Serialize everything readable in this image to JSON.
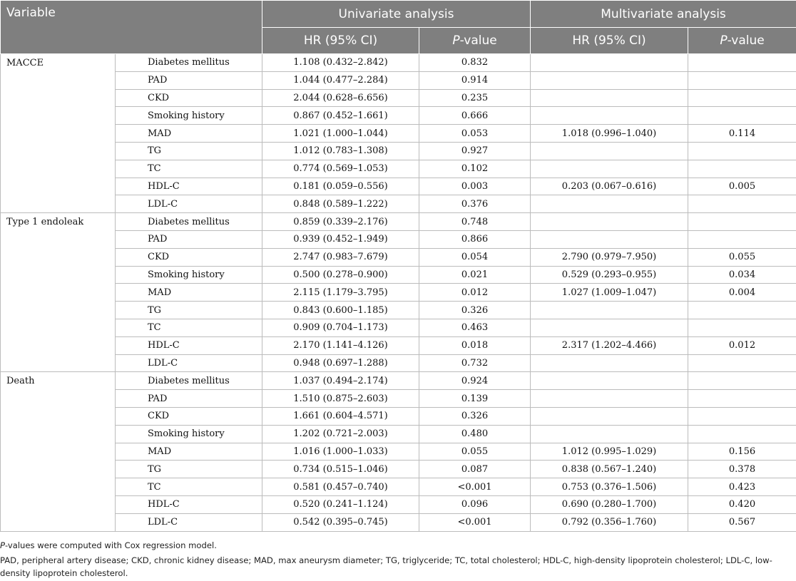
{
  "header": {
    "variable": "Variable",
    "univariate": "Univariate analysis",
    "multivariate": "Multivariate analysis",
    "hr_ci": "HR (95% CI)",
    "p_prefix": "P",
    "p_suffix": "-value"
  },
  "groups": [
    {
      "name": "MACCE",
      "rows": [
        {
          "variable": "Diabetes mellitus",
          "uni_hr": "1.108 (0.432–2.842)",
          "uni_p": "0.832",
          "multi_hr": "",
          "multi_p": ""
        },
        {
          "variable": "PAD",
          "uni_hr": "1.044 (0.477–2.284)",
          "uni_p": "0.914",
          "multi_hr": "",
          "multi_p": ""
        },
        {
          "variable": "CKD",
          "uni_hr": "2.044 (0.628–6.656)",
          "uni_p": "0.235",
          "multi_hr": "",
          "multi_p": ""
        },
        {
          "variable": "Smoking history",
          "uni_hr": "0.867 (0.452–1.661)",
          "uni_p": "0.666",
          "multi_hr": "",
          "multi_p": ""
        },
        {
          "variable": "MAD",
          "uni_hr": "1.021 (1.000–1.044)",
          "uni_p": "0.053",
          "multi_hr": "1.018 (0.996–1.040)",
          "multi_p": "0.114"
        },
        {
          "variable": "TG",
          "uni_hr": "1.012 (0.783–1.308)",
          "uni_p": "0.927",
          "multi_hr": "",
          "multi_p": ""
        },
        {
          "variable": "TC",
          "uni_hr": "0.774 (0.569–1.053)",
          "uni_p": "0.102",
          "multi_hr": "",
          "multi_p": ""
        },
        {
          "variable": "HDL-C",
          "uni_hr": "0.181 (0.059–0.556)",
          "uni_p": "0.003",
          "multi_hr": "0.203 (0.067–0.616)",
          "multi_p": "0.005"
        },
        {
          "variable": "LDL-C",
          "uni_hr": "0.848 (0.589–1.222)",
          "uni_p": "0.376",
          "multi_hr": "",
          "multi_p": ""
        }
      ]
    },
    {
      "name": "Type 1 endoleak",
      "rows": [
        {
          "variable": "Diabetes mellitus",
          "uni_hr": "0.859 (0.339–2.176)",
          "uni_p": "0.748",
          "multi_hr": "",
          "multi_p": ""
        },
        {
          "variable": "PAD",
          "uni_hr": "0.939 (0.452–1.949)",
          "uni_p": "0.866",
          "multi_hr": "",
          "multi_p": ""
        },
        {
          "variable": "CKD",
          "uni_hr": "2.747 (0.983–7.679)",
          "uni_p": "0.054",
          "multi_hr": "2.790 (0.979–7.950)",
          "multi_p": "0.055"
        },
        {
          "variable": "Smoking history",
          "uni_hr": "0.500 (0.278–0.900)",
          "uni_p": "0.021",
          "multi_hr": "0.529 (0.293–0.955)",
          "multi_p": "0.034"
        },
        {
          "variable": "MAD",
          "uni_hr": "2.115 (1.179–3.795)",
          "uni_p": "0.012",
          "multi_hr": "1.027 (1.009–1.047)",
          "multi_p": "0.004"
        },
        {
          "variable": "TG",
          "uni_hr": "0.843 (0.600–1.185)",
          "uni_p": "0.326",
          "multi_hr": "",
          "multi_p": ""
        },
        {
          "variable": "TC",
          "uni_hr": "0.909 (0.704–1.173)",
          "uni_p": "0.463",
          "multi_hr": "",
          "multi_p": ""
        },
        {
          "variable": "HDL-C",
          "uni_hr": "2.170 (1.141–4.126)",
          "uni_p": "0.018",
          "multi_hr": "2.317 (1.202–4.466)",
          "multi_p": "0.012"
        },
        {
          "variable": "LDL-C",
          "uni_hr": "0.948 (0.697–1.288)",
          "uni_p": "0.732",
          "multi_hr": "",
          "multi_p": ""
        }
      ]
    },
    {
      "name": "Death",
      "rows": [
        {
          "variable": "Diabetes mellitus",
          "uni_hr": "1.037 (0.494–2.174)",
          "uni_p": "0.924",
          "multi_hr": "",
          "multi_p": ""
        },
        {
          "variable": "PAD",
          "uni_hr": "1.510 (0.875–2.603)",
          "uni_p": "0.139",
          "multi_hr": "",
          "multi_p": ""
        },
        {
          "variable": "CKD",
          "uni_hr": "1.661 (0.604–4.571)",
          "uni_p": "0.326",
          "multi_hr": "",
          "multi_p": ""
        },
        {
          "variable": "Smoking history",
          "uni_hr": "1.202 (0.721–2.003)",
          "uni_p": "0.480",
          "multi_hr": "",
          "multi_p": ""
        },
        {
          "variable": "MAD",
          "uni_hr": "1.016 (1.000–1.033)",
          "uni_p": "0.055",
          "multi_hr": "1.012 (0.995–1.029)",
          "multi_p": "0.156"
        },
        {
          "variable": "TG",
          "uni_hr": "0.734 (0.515–1.046)",
          "uni_p": "0.087",
          "multi_hr": "0.838 (0.567–1.240)",
          "multi_p": "0.378"
        },
        {
          "variable": "TC",
          "uni_hr": "0.581 (0.457–0.740)",
          "uni_p": "<0.001",
          "multi_hr": "0.753 (0.376–1.506)",
          "multi_p": "0.423"
        },
        {
          "variable": "HDL-C",
          "uni_hr": "0.520 (0.241–1.124)",
          "uni_p": "0.096",
          "multi_hr": "0.690 (0.280–1.700)",
          "multi_p": "0.420"
        },
        {
          "variable": "LDL-C",
          "uni_hr": "0.542 (0.395–0.745)",
          "uni_p": "<0.001",
          "multi_hr": "0.792 (0.356–1.760)",
          "multi_p": "0.567"
        }
      ]
    }
  ],
  "footnotes": {
    "note1_prefix": "P",
    "note1_text": "-values were computed with Cox regression model.",
    "note2": "PAD, peripheral artery disease; CKD, chronic kidney disease; MAD, max aneurysm diameter; TG, triglyceride; TC, total cholesterol; HDL-C, high-density lipoprotein cholesterol; LDL-C, low-density lipoprotein cholesterol."
  },
  "colors": {
    "header_bg": "#7f7f7f",
    "header_text": "#ffffff",
    "grid": "#bcbcbc"
  }
}
